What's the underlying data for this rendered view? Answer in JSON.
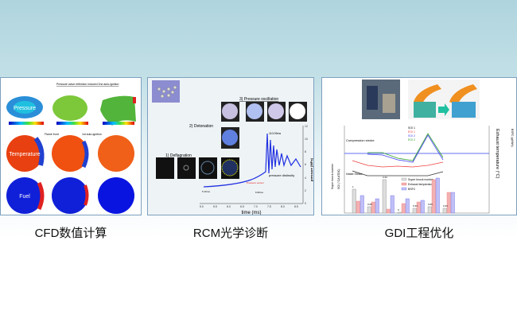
{
  "panels": [
    {
      "caption": "CFD数值计算",
      "labels": {
        "pressure": "Pressure",
        "temperature": "Temperature",
        "fuel": "Fuel",
        "annotation_top": "Pressure wave reflection induced 2nd auto-ignition",
        "flame_front": "Flame front",
        "auto_ignition": "1st auto-ignition"
      }
    },
    {
      "caption": "RCM光学诊断",
      "labels": {
        "deflagration": "1)    Deflagration",
        "detonation": "2) Detonation",
        "oscillation": "3)    Pressure oscillation",
        "period": "110.09ms",
        "disc": "pressure distinuity",
        "sensor": "Pressure sensor",
        "t1": "5.16ms",
        "t2": "6.99ms",
        "xlabel": "time (ms)",
        "ylabel": "pressure (MPa)",
        "xticks": [
          "5.0",
          "5.5",
          "6.0",
          "6.5",
          "7.0",
          "7.5",
          "8.0",
          "8.5"
        ],
        "yticks": [
          "0",
          "2",
          "4",
          "6",
          "8",
          "10",
          "12"
        ]
      }
    },
    {
      "caption": "GDI工程优化",
      "labels": {
        "compression": "Compression stroke",
        "intake": "Intake Stroke",
        "legend_top": [
          "SOI 1",
          "EOI 1",
          "SOI 2",
          "EOI 2"
        ],
        "legend_bottom": [
          "Super knock number",
          "Exhaust temperature",
          "BSFC"
        ],
        "xticks": [
          "1",
          "2",
          "3",
          "4",
          "5",
          "6",
          "7"
        ],
        "bar_labels": [
          "1",
          "0.66",
          "3.33",
          "0",
          "0.33",
          "0.66",
          "0.33"
        ],
        "yleft": "Super knock number",
        "yleft2": "SOI (°CA ATDC)",
        "yright": "Exhaust temperature (°C)",
        "yright2": "BSFC (g/kWh)"
      },
      "colors": {
        "knock": "#888888",
        "exhaust": "#f08080",
        "bsfc": "#6a6ae0"
      }
    }
  ]
}
